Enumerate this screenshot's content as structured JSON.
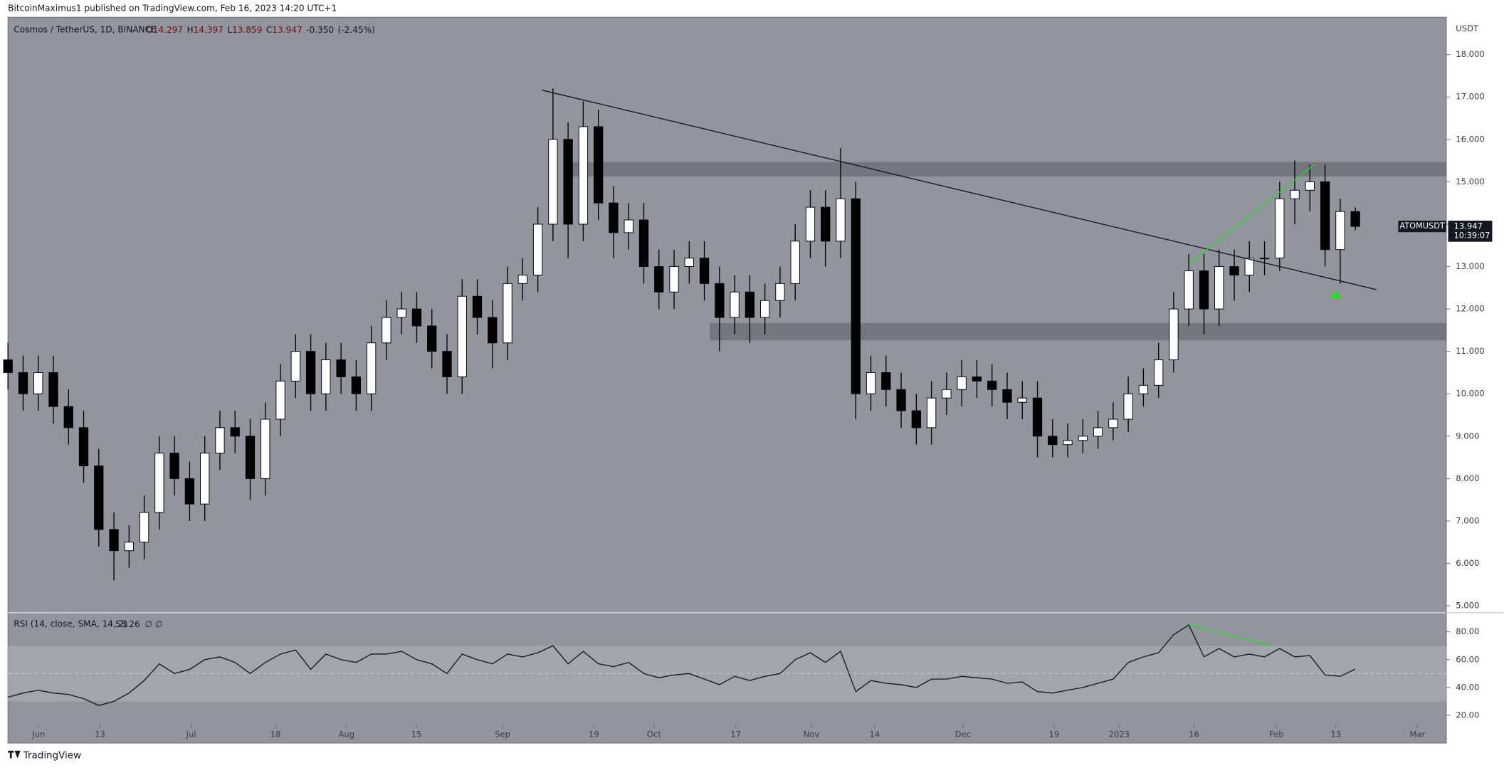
{
  "header": {
    "publisher": "BitcoinMaximus1 published on TradingView.com, Feb 16, 2023 14:20 UTC+1",
    "logo": "TradingView"
  },
  "chart_data": [
    {
      "type": "candlestick",
      "title": "Cosmos / TetherUS, 1D, BINANCE",
      "ohlc_labels": [
        "O",
        "H",
        "L",
        "C"
      ],
      "change": {
        "value": -0.35,
        "label": "-0.350"
      },
      "change_pct": {
        "value": -2.45,
        "label": "(-2.45%)"
      },
      "axis_unit": "USDT",
      "symbol": "ATOMUSDT",
      "countdown": "10:39:07",
      "up_color": "#ffffff",
      "down_color": "#000000",
      "xlim": [
        0,
        95
      ],
      "xticks": [
        {
          "value": 2.03,
          "label": "Jun"
        },
        {
          "value": 6.08,
          "label": "13"
        },
        {
          "value": 12.1,
          "label": "Jul"
        },
        {
          "value": 17.67,
          "label": "18"
        },
        {
          "value": 22.36,
          "label": "Aug"
        },
        {
          "value": 26.98,
          "label": "15"
        },
        {
          "value": 32.68,
          "label": "Sep"
        },
        {
          "value": 38.7,
          "label": "19"
        },
        {
          "value": 42.68,
          "label": "Oct"
        },
        {
          "value": 48.07,
          "label": "17"
        },
        {
          "value": 53.07,
          "label": "Nov"
        },
        {
          "value": 57.25,
          "label": "14"
        },
        {
          "value": 63.08,
          "label": "Dec"
        },
        {
          "value": 69.1,
          "label": "19"
        },
        {
          "value": 73.4,
          "label": "2023"
        },
        {
          "value": 78.34,
          "label": "16"
        },
        {
          "value": 83.79,
          "label": "Feb"
        },
        {
          "value": 87.71,
          "label": "13"
        },
        {
          "value": 93.1,
          "label": "Mar"
        }
      ],
      "ylim": [
        4.86,
        18.88
      ],
      "yticks": [
        {
          "value": 5,
          "label": "5.000"
        },
        {
          "value": 6,
          "label": "6.000"
        },
        {
          "value": 7,
          "label": "7.000"
        },
        {
          "value": 8,
          "label": "8.000"
        },
        {
          "value": 9,
          "label": "9.000"
        },
        {
          "value": 10,
          "label": "10.000"
        },
        {
          "value": 11,
          "label": "11.000"
        },
        {
          "value": 12,
          "label": "12.000"
        },
        {
          "value": 13,
          "label": "13.000"
        },
        {
          "value": 14,
          "label": "14.000"
        },
        {
          "value": 15,
          "label": "15.000"
        },
        {
          "value": 16,
          "label": "16.000"
        },
        {
          "value": 17,
          "label": "17.000"
        },
        {
          "value": 18,
          "label": "18.000"
        }
      ],
      "open": [
        10.8,
        10.5,
        10.0,
        10.5,
        9.7,
        9.2,
        8.3,
        6.8,
        6.3,
        6.5,
        7.2,
        8.6,
        8.0,
        7.4,
        8.6,
        9.2,
        9.0,
        8.0,
        9.4,
        10.3,
        11.0,
        10.0,
        10.8,
        10.4,
        10.0,
        11.2,
        11.8,
        12.0,
        11.6,
        11.0,
        10.4,
        12.3,
        11.8,
        11.2,
        12.6,
        12.8,
        14.0,
        16.0,
        14.0,
        16.3,
        14.5,
        13.8,
        14.1,
        13.0,
        12.4,
        13.0,
        13.2,
        12.6,
        11.8,
        12.4,
        11.8,
        12.2,
        12.6,
        13.6,
        14.4,
        13.6,
        14.6,
        10.0,
        10.5,
        10.1,
        9.6,
        9.2,
        9.9,
        10.1,
        10.4,
        10.3,
        10.1,
        9.8,
        9.9,
        9.0,
        8.8,
        8.9,
        9.0,
        9.2,
        9.4,
        10.0,
        10.2,
        10.8,
        12.0,
        12.9,
        12.0,
        13.0,
        12.8,
        13.2,
        13.2,
        14.6,
        14.8,
        15.0,
        13.4,
        14.297
      ],
      "high": [
        11.2,
        10.9,
        10.9,
        10.9,
        10.1,
        9.6,
        8.7,
        7.2,
        6.9,
        7.6,
        9.0,
        9.0,
        8.4,
        9.0,
        9.6,
        9.6,
        9.4,
        9.8,
        10.7,
        11.4,
        11.4,
        11.2,
        11.2,
        10.8,
        11.6,
        12.2,
        12.4,
        12.4,
        12.0,
        11.4,
        12.7,
        12.7,
        12.2,
        13.0,
        13.2,
        14.4,
        17.2,
        16.4,
        16.9,
        16.7,
        14.9,
        14.5,
        14.5,
        13.4,
        13.4,
        13.6,
        13.6,
        13.0,
        12.8,
        12.8,
        12.6,
        13.0,
        14.0,
        14.8,
        14.8,
        15.8,
        15.0,
        10.9,
        10.9,
        10.5,
        10.0,
        10.3,
        10.5,
        10.8,
        10.8,
        10.7,
        10.5,
        10.3,
        10.3,
        9.4,
        9.3,
        9.4,
        9.6,
        9.8,
        10.4,
        10.6,
        11.2,
        12.4,
        13.3,
        13.3,
        13.4,
        13.4,
        13.6,
        13.6,
        15.0,
        15.5,
        15.4,
        15.4,
        14.6,
        14.397
      ],
      "low": [
        10.1,
        9.6,
        9.6,
        9.3,
        8.8,
        7.9,
        6.4,
        5.6,
        5.9,
        6.1,
        6.8,
        7.6,
        7.0,
        7.0,
        8.2,
        8.6,
        7.5,
        7.6,
        9.0,
        9.9,
        9.6,
        9.6,
        10.0,
        9.6,
        9.6,
        10.8,
        11.4,
        11.2,
        10.6,
        10.0,
        10.0,
        11.4,
        10.6,
        10.8,
        12.2,
        12.4,
        13.6,
        13.2,
        13.6,
        14.1,
        13.2,
        13.4,
        12.6,
        12.0,
        12.0,
        12.6,
        12.2,
        11.0,
        11.4,
        11.2,
        11.4,
        11.8,
        12.2,
        13.2,
        13.0,
        13.2,
        9.4,
        9.6,
        9.7,
        9.2,
        8.8,
        8.8,
        9.5,
        9.7,
        9.9,
        9.7,
        9.4,
        9.4,
        8.5,
        8.5,
        8.5,
        8.6,
        8.7,
        8.9,
        9.1,
        9.7,
        9.9,
        10.5,
        11.6,
        11.4,
        11.6,
        12.2,
        12.4,
        12.8,
        12.9,
        14.0,
        14.3,
        13.0,
        12.6,
        13.859
      ],
      "close": [
        10.5,
        10.0,
        10.5,
        9.7,
        9.2,
        8.3,
        6.8,
        6.3,
        6.5,
        7.2,
        8.6,
        8.0,
        7.4,
        8.6,
        9.2,
        9.0,
        8.0,
        9.4,
        10.3,
        11.0,
        10.0,
        10.8,
        10.4,
        10.0,
        11.2,
        11.8,
        12.0,
        11.6,
        11.0,
        10.4,
        12.3,
        11.8,
        11.2,
        12.6,
        12.8,
        14.0,
        16.0,
        14.0,
        16.3,
        14.5,
        13.8,
        14.1,
        13.0,
        12.4,
        13.0,
        13.2,
        12.6,
        11.8,
        12.4,
        11.8,
        12.2,
        12.6,
        13.6,
        14.4,
        13.6,
        14.6,
        10.0,
        10.5,
        10.1,
        9.6,
        9.2,
        9.9,
        10.1,
        10.4,
        10.3,
        10.1,
        9.8,
        9.9,
        9.0,
        8.8,
        8.9,
        9.0,
        9.2,
        9.4,
        10.0,
        10.2,
        10.8,
        12.0,
        12.9,
        12.0,
        13.0,
        12.8,
        13.2,
        13.2,
        14.6,
        14.8,
        15.0,
        13.4,
        14.3,
        13.947
      ]
    },
    {
      "type": "line",
      "title": "RSI (14, close, SMA, 14, 2)",
      "flags": "∅ ∅",
      "color": "#131722",
      "xlim": [
        0,
        95
      ],
      "ylim": [
        13.8,
        93.1
      ],
      "yticks": [
        {
          "value": 20,
          "label": "20.00"
        },
        {
          "value": 40,
          "label": "40.00"
        },
        {
          "value": 60,
          "label": "60.00"
        },
        {
          "value": 80,
          "label": "80.00"
        }
      ],
      "band": [
        30,
        70
      ],
      "midline": 50,
      "values": [
        33,
        36,
        38,
        36,
        35,
        32,
        27,
        30,
        36,
        45,
        57,
        50,
        53,
        60,
        62,
        58,
        50,
        58,
        64,
        67,
        53,
        64,
        60,
        58,
        64,
        64,
        66,
        60,
        57,
        50,
        64,
        60,
        57,
        64,
        62,
        65,
        70,
        57,
        66,
        57,
        55,
        58,
        50,
        47,
        49,
        50,
        46,
        42,
        48,
        45,
        48,
        50,
        60,
        65,
        58,
        66,
        37,
        45,
        43,
        42,
        40,
        46,
        46,
        48,
        47,
        46,
        43,
        44,
        37,
        36,
        38,
        40,
        43,
        46,
        58,
        62,
        65,
        78,
        85,
        62,
        68,
        62,
        64,
        62,
        68,
        62,
        63,
        49,
        48,
        53.26
      ]
    }
  ]
}
